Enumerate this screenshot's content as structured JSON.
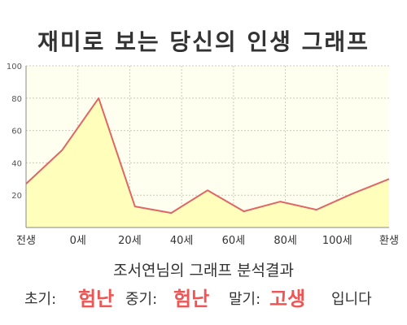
{
  "header": {
    "title": "재미로 보는 당신의 인생 그래프"
  },
  "chart_data": {
    "type": "area",
    "x_tick_labels": [
      "전생",
      "0세",
      "20세",
      "40세",
      "60세",
      "80세",
      "100세",
      "환생"
    ],
    "points": [
      {
        "x": "전생",
        "y": 27
      },
      {
        "x": "0세",
        "y": 48
      },
      {
        "x": "20세",
        "y": 80
      },
      {
        "x": "",
        "y": 13
      },
      {
        "x": "",
        "y": 9
      },
      {
        "x": "",
        "y": 23
      },
      {
        "x": "",
        "y": 10
      },
      {
        "x": "",
        "y": 16
      },
      {
        "x": "",
        "y": 11
      },
      {
        "x": "",
        "y": 21
      },
      {
        "x": "환생",
        "y": 30
      }
    ],
    "ylim": [
      0,
      100
    ],
    "y_ticks": [
      20,
      40,
      60,
      80,
      100
    ],
    "grid": true,
    "colors": {
      "line": "#e06666",
      "fill": "#ffffbb",
      "plot_bg": "#fffff0",
      "grid": "#ccccbb"
    }
  },
  "result": {
    "heading": "조서연님의 그래프 분석결과",
    "early_label": "초기:",
    "early_value": "험난",
    "middle_label": "중기:",
    "middle_value": "험난",
    "late_label": "말기:",
    "late_value": "고생",
    "ending": "입니다",
    "highlight_color": "#ee5555"
  }
}
